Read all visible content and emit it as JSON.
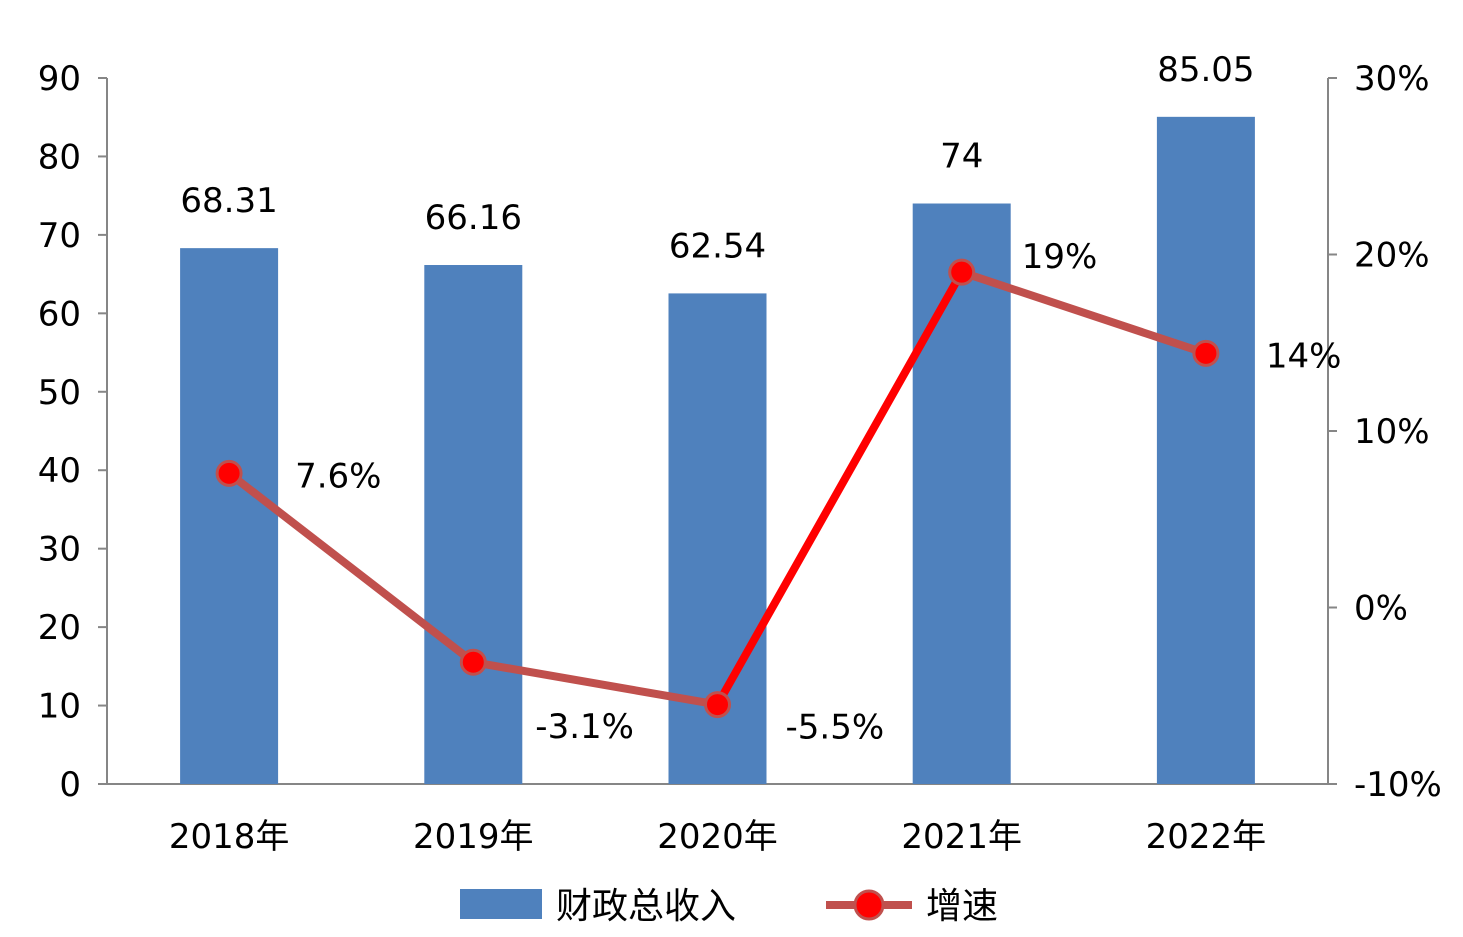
{
  "chart_data": {
    "type": "bar",
    "categories": [
      "2018年",
      "2019年",
      "2020年",
      "2021年",
      "2022年"
    ],
    "series": [
      {
        "name": "财政总收入",
        "type": "bar",
        "axis": "left",
        "values": [
          68.31,
          66.16,
          62.54,
          74,
          85.05
        ],
        "labels": [
          "68.31",
          "66.16",
          "62.54",
          "74",
          "85.05"
        ],
        "color": "#4F81BD"
      },
      {
        "name": "增速",
        "type": "line",
        "axis": "right",
        "values": [
          7.6,
          -3.1,
          -5.5,
          19,
          14.4
        ],
        "labels": [
          "7.6%",
          "-3.1%",
          "-5.5%",
          "19%",
          "14%"
        ],
        "color": "#C0504D",
        "highlight_color": "#FF0000"
      }
    ],
    "y_left": {
      "range": [
        0,
        90
      ],
      "ticks": [
        "0",
        "10",
        "20",
        "30",
        "40",
        "50",
        "60",
        "70",
        "80",
        "90"
      ]
    },
    "y_right": {
      "range": [
        -10,
        30
      ],
      "ticks": [
        "-10%",
        "0%",
        "10%",
        "20%",
        "30%"
      ]
    },
    "grid": false,
    "legend_position": "bottom"
  }
}
